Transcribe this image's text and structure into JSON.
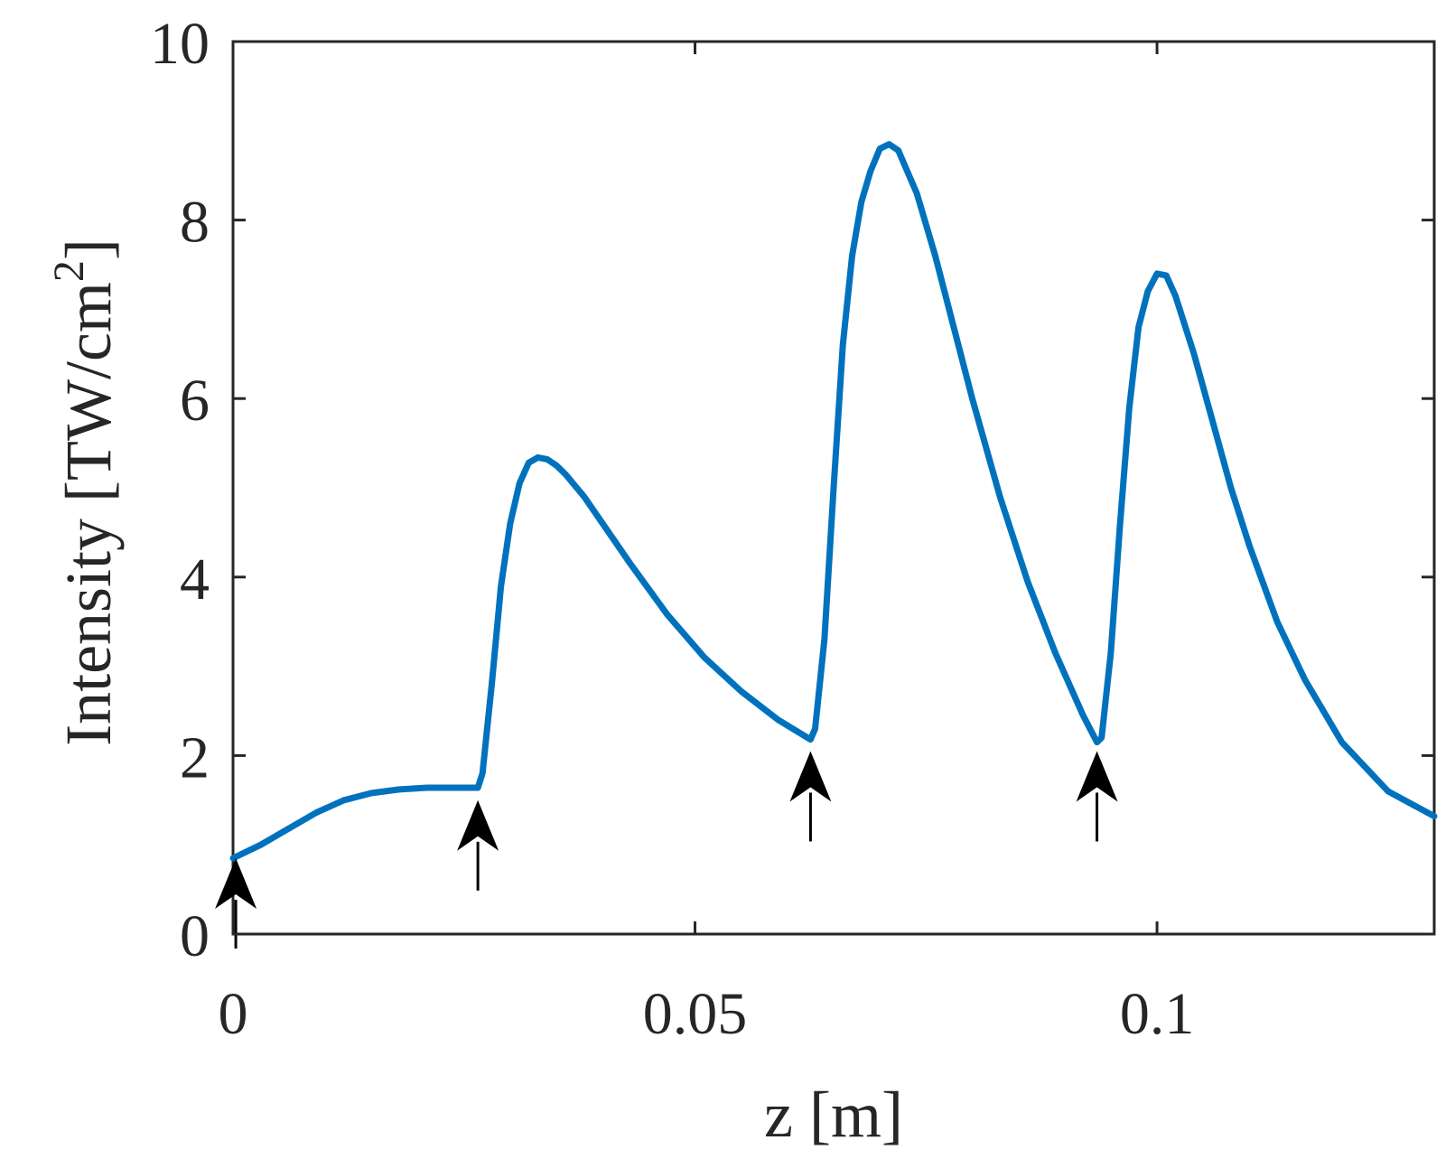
{
  "chart_data": {
    "type": "line",
    "title": "",
    "xlabel": "z [m]",
    "ylabel": "Intensity [TW/cm",
    "ylabel_sup": "2",
    "ylabel_close": "]",
    "xlim": [
      0,
      0.13
    ],
    "ylim": [
      0,
      10
    ],
    "xticks": [
      0,
      0.05,
      0.1
    ],
    "xtick_labels": [
      "0",
      "0.05",
      "0.1"
    ],
    "yticks": [
      0,
      2,
      4,
      6,
      8,
      10
    ],
    "ytick_labels": [
      "0",
      "2",
      "4",
      "6",
      "8",
      "10"
    ],
    "grid": false,
    "line_color": "#0072BD",
    "series": [
      {
        "x": [
          0,
          0.003,
          0.006,
          0.009,
          0.012,
          0.015,
          0.018,
          0.021,
          0.024,
          0.0265,
          0.027,
          0.028,
          0.029,
          0.03,
          0.031,
          0.032,
          0.033,
          0.034,
          0.035,
          0.036,
          0.038,
          0.04,
          0.043,
          0.047,
          0.051,
          0.055,
          0.059,
          0.0625,
          0.063,
          0.064,
          0.065,
          0.066,
          0.067,
          0.068,
          0.069,
          0.07,
          0.071,
          0.072,
          0.074,
          0.076,
          0.078,
          0.08,
          0.083,
          0.086,
          0.089,
          0.092,
          0.0935,
          0.094,
          0.095,
          0.096,
          0.097,
          0.098,
          0.099,
          0.1,
          0.101,
          0.102,
          0.104,
          0.106,
          0.108,
          0.11,
          0.113,
          0.116,
          0.12,
          0.125,
          0.13
        ],
        "y": [
          0.85,
          1.0,
          1.18,
          1.36,
          1.5,
          1.58,
          1.62,
          1.64,
          1.64,
          1.64,
          1.8,
          2.8,
          3.9,
          4.6,
          5.05,
          5.28,
          5.34,
          5.32,
          5.25,
          5.15,
          4.9,
          4.6,
          4.15,
          3.58,
          3.1,
          2.72,
          2.4,
          2.18,
          2.3,
          3.3,
          5.0,
          6.6,
          7.6,
          8.2,
          8.55,
          8.8,
          8.85,
          8.78,
          8.3,
          7.6,
          6.8,
          6.0,
          4.9,
          3.95,
          3.15,
          2.45,
          2.15,
          2.2,
          3.15,
          4.6,
          5.9,
          6.8,
          7.2,
          7.4,
          7.38,
          7.15,
          6.5,
          5.75,
          5.0,
          4.35,
          3.5,
          2.85,
          2.15,
          1.6,
          1.32
        ]
      }
    ],
    "arrows": [
      {
        "x": 0.0003,
        "y_tip": 0.85
      },
      {
        "x": 0.0265,
        "y_tip": 1.5
      },
      {
        "x": 0.0625,
        "y_tip": 2.05
      },
      {
        "x": 0.0935,
        "y_tip": 2.05
      }
    ]
  }
}
